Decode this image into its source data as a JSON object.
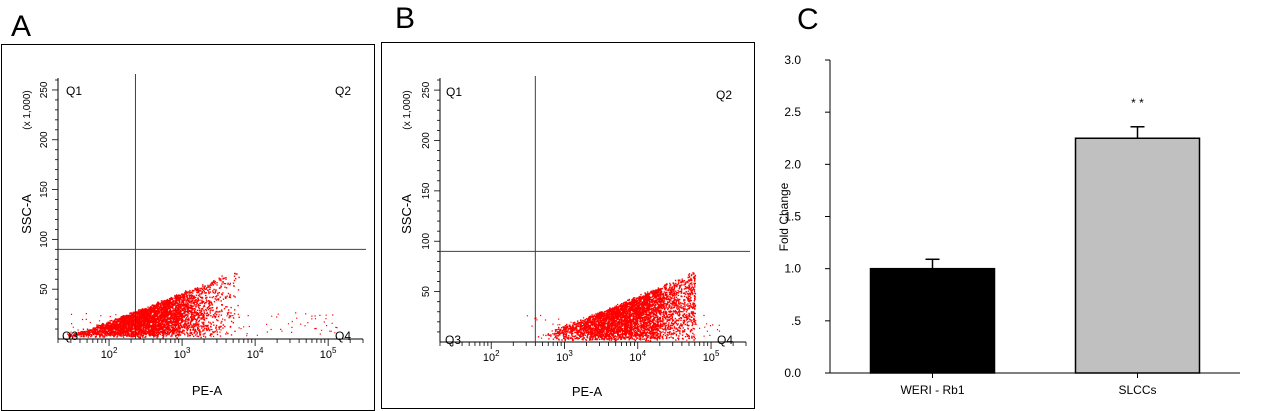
{
  "panels": [
    {
      "letter": "A"
    },
    {
      "letter": "B"
    },
    {
      "letter": "C"
    }
  ],
  "chart_data": [
    {
      "type": "scatter",
      "panel": "A",
      "xlabel": "PE-A",
      "ylabel": "SSC-A",
      "y_multiplier": "(x 1,000)",
      "x_scale": "log",
      "xlim": [
        20,
        300000
      ],
      "ylim": [
        0,
        262
      ],
      "x_tick_labels": [
        "10",
        "10",
        "10",
        "10"
      ],
      "x_tick_exponents": [
        "2",
        "3",
        "4",
        "5"
      ],
      "x_tick_values": [
        100,
        1000,
        10000,
        100000
      ],
      "y_ticks": [
        50,
        100,
        150,
        200,
        250
      ],
      "y_tick_labels": [
        "50",
        "100",
        "150",
        "200",
        "250"
      ],
      "gate": {
        "x": 230,
        "y": 90
      },
      "quadrants": {
        "q1": "Q1",
        "q2": "Q2",
        "q3": "Q3",
        "q4": "Q4"
      },
      "point_color": "#ff0000",
      "population": {
        "x_min": 25,
        "x_max": 6000,
        "peak_x": 400,
        "y_base": 3,
        "y_top": 70
      }
    },
    {
      "type": "scatter",
      "panel": "B",
      "xlabel": "PE-A",
      "ylabel": "SSC-A",
      "y_multiplier": "(x 1,000)",
      "x_scale": "log",
      "xlim": [
        20,
        300000
      ],
      "ylim": [
        0,
        262
      ],
      "x_tick_labels": [
        "10",
        "10",
        "10",
        "10"
      ],
      "x_tick_exponents": [
        "2",
        "3",
        "4",
        "5"
      ],
      "x_tick_values": [
        100,
        1000,
        10000,
        100000
      ],
      "y_ticks": [
        50,
        100,
        150,
        200,
        250
      ],
      "y_tick_labels": [
        "50",
        "100",
        "150",
        "200",
        "250"
      ],
      "gate": {
        "x": 400,
        "y": 90
      },
      "quadrants": {
        "q1": "Q1",
        "q2": "Q2",
        "q3": "Q3",
        "q4": "Q4"
      },
      "point_color": "#ff0000",
      "population": {
        "x_min": 300,
        "x_max": 60000,
        "peak_x": 8000,
        "y_base": 3,
        "y_top": 70
      }
    },
    {
      "type": "bar",
      "panel": "C",
      "categories": [
        "WERI - Rb1",
        "SLCCs"
      ],
      "values": [
        1.0,
        2.25
      ],
      "errors": [
        0.09,
        0.11
      ],
      "bar_colors": [
        "#000000",
        "#c0c0c0"
      ],
      "ylabel": "Fold Change",
      "ylim": [
        0,
        3.0
      ],
      "y_ticks": [
        0,
        0.5,
        1.0,
        1.5,
        2.0,
        2.5,
        3.0
      ],
      "y_tick_labels": [
        "0.0",
        ".5",
        "1.0",
        "1.5",
        "2.0",
        "2.5",
        "3.0"
      ],
      "annotation": {
        "category": "SLCCs",
        "text": "* *"
      }
    }
  ]
}
